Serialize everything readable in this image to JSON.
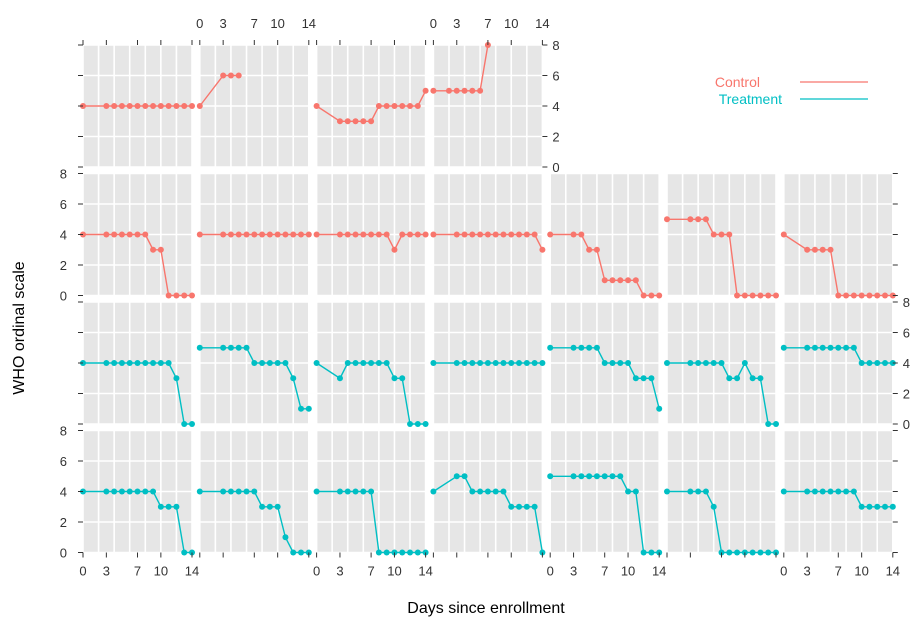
{
  "chart_data": {
    "type": "line",
    "title": "",
    "xlabel": "Days since enrollment",
    "ylabel": "WHO ordinal scale",
    "xlim": [
      0,
      14
    ],
    "ylim": [
      0,
      8
    ],
    "x_ticks": [
      0,
      3,
      7,
      10,
      14
    ],
    "y_ticks": [
      0,
      2,
      4,
      6,
      8
    ],
    "grid": true,
    "legend_position": "top-right",
    "series_styles": [
      {
        "name": "Control",
        "color": "#F8766D"
      },
      {
        "name": "Treatment",
        "color": "#00BFC4"
      }
    ],
    "panels": [
      {
        "row": 0,
        "col": 0,
        "group": "Control",
        "x": [
          0,
          3,
          4,
          5,
          6,
          7,
          8,
          9,
          10,
          11,
          12,
          13,
          14
        ],
        "y": [
          4,
          4,
          4,
          4,
          4,
          4,
          4,
          4,
          4,
          4,
          4,
          4,
          4
        ]
      },
      {
        "row": 0,
        "col": 1,
        "group": "Control",
        "x": [
          0,
          3,
          4,
          5
        ],
        "y": [
          4,
          6,
          6,
          6
        ]
      },
      {
        "row": 0,
        "col": 2,
        "group": "Control",
        "x": [
          0,
          3,
          4,
          5,
          6,
          7,
          8,
          9,
          10,
          11,
          12,
          13,
          14
        ],
        "y": [
          4,
          3,
          3,
          3,
          3,
          3,
          4,
          4,
          4,
          4,
          4,
          4,
          5
        ]
      },
      {
        "row": 0,
        "col": 3,
        "group": "Control",
        "x": [
          0,
          2,
          3,
          4,
          5,
          6,
          7
        ],
        "y": [
          5,
          5,
          5,
          5,
          5,
          5,
          8
        ]
      },
      {
        "row": 1,
        "col": 0,
        "group": "Control",
        "x": [
          0,
          3,
          4,
          5,
          6,
          7,
          8,
          9,
          10,
          11,
          12,
          13,
          14
        ],
        "y": [
          4,
          4,
          4,
          4,
          4,
          4,
          4,
          3,
          3,
          0,
          0,
          0,
          0
        ]
      },
      {
        "row": 1,
        "col": 1,
        "group": "Control",
        "x": [
          0,
          3,
          4,
          5,
          6,
          7,
          8,
          9,
          10,
          11,
          12,
          13,
          14
        ],
        "y": [
          4,
          4,
          4,
          4,
          4,
          4,
          4,
          4,
          4,
          4,
          4,
          4,
          4
        ]
      },
      {
        "row": 1,
        "col": 2,
        "group": "Control",
        "x": [
          0,
          3,
          4,
          5,
          6,
          7,
          8,
          9,
          10,
          11,
          12,
          13,
          14
        ],
        "y": [
          4,
          4,
          4,
          4,
          4,
          4,
          4,
          4,
          3,
          4,
          4,
          4,
          4
        ]
      },
      {
        "row": 1,
        "col": 3,
        "group": "Control",
        "x": [
          0,
          3,
          4,
          5,
          6,
          7,
          8,
          9,
          10,
          11,
          12,
          13,
          14
        ],
        "y": [
          4,
          4,
          4,
          4,
          4,
          4,
          4,
          4,
          4,
          4,
          4,
          4,
          3
        ]
      },
      {
        "row": 1,
        "col": 4,
        "group": "Control",
        "x": [
          0,
          3,
          4,
          5,
          6,
          7,
          8,
          9,
          10,
          11,
          12,
          13,
          14
        ],
        "y": [
          4,
          4,
          4,
          3,
          3,
          1,
          1,
          1,
          1,
          1,
          0,
          0,
          0
        ]
      },
      {
        "row": 1,
        "col": 5,
        "group": "Control",
        "x": [
          0,
          3,
          4,
          5,
          6,
          7,
          8,
          9,
          10,
          11,
          12,
          13,
          14
        ],
        "y": [
          5,
          5,
          5,
          5,
          4,
          4,
          4,
          0,
          0,
          0,
          0,
          0,
          0
        ]
      },
      {
        "row": 1,
        "col": 6,
        "group": "Control",
        "x": [
          0,
          3,
          4,
          5,
          6,
          7,
          8,
          9,
          10,
          11,
          12,
          13,
          14
        ],
        "y": [
          4,
          3,
          3,
          3,
          3,
          0,
          0,
          0,
          0,
          0,
          0,
          0,
          0
        ]
      },
      {
        "row": 2,
        "col": 0,
        "group": "Treatment",
        "x": [
          0,
          3,
          4,
          5,
          6,
          7,
          8,
          9,
          10,
          11,
          12,
          13,
          14
        ],
        "y": [
          4,
          4,
          4,
          4,
          4,
          4,
          4,
          4,
          4,
          4,
          3,
          0,
          0
        ]
      },
      {
        "row": 2,
        "col": 1,
        "group": "Treatment",
        "x": [
          0,
          3,
          4,
          5,
          6,
          7,
          8,
          9,
          10,
          11,
          12,
          13,
          14
        ],
        "y": [
          5,
          5,
          5,
          5,
          5,
          4,
          4,
          4,
          4,
          4,
          3,
          1,
          1
        ]
      },
      {
        "row": 2,
        "col": 2,
        "group": "Treatment",
        "x": [
          0,
          3,
          4,
          5,
          6,
          7,
          8,
          9,
          10,
          11,
          12,
          13,
          14
        ],
        "y": [
          4,
          3,
          4,
          4,
          4,
          4,
          4,
          4,
          3,
          3,
          0,
          0,
          0
        ]
      },
      {
        "row": 2,
        "col": 3,
        "group": "Treatment",
        "x": [
          0,
          3,
          4,
          5,
          6,
          7,
          8,
          9,
          10,
          11,
          12,
          13,
          14
        ],
        "y": [
          4,
          4,
          4,
          4,
          4,
          4,
          4,
          4,
          4,
          4,
          4,
          4,
          4
        ]
      },
      {
        "row": 2,
        "col": 4,
        "group": "Treatment",
        "x": [
          0,
          3,
          4,
          5,
          6,
          7,
          8,
          9,
          10,
          11,
          12,
          13,
          14
        ],
        "y": [
          5,
          5,
          5,
          5,
          5,
          4,
          4,
          4,
          4,
          3,
          3,
          3,
          1
        ]
      },
      {
        "row": 2,
        "col": 5,
        "group": "Treatment",
        "x": [
          0,
          3,
          4,
          5,
          6,
          7,
          8,
          9,
          10,
          11,
          12,
          13,
          14
        ],
        "y": [
          4,
          4,
          4,
          4,
          4,
          4,
          3,
          3,
          4,
          3,
          3,
          0,
          0
        ]
      },
      {
        "row": 2,
        "col": 6,
        "group": "Treatment",
        "x": [
          0,
          3,
          4,
          5,
          6,
          7,
          8,
          9,
          10,
          11,
          12,
          13,
          14
        ],
        "y": [
          5,
          5,
          5,
          5,
          5,
          5,
          5,
          5,
          4,
          4,
          4,
          4,
          4
        ]
      },
      {
        "row": 3,
        "col": 0,
        "group": "Treatment",
        "x": [
          0,
          3,
          4,
          5,
          6,
          7,
          8,
          9,
          10,
          11,
          12,
          13,
          14
        ],
        "y": [
          4,
          4,
          4,
          4,
          4,
          4,
          4,
          4,
          3,
          3,
          3,
          0,
          0
        ]
      },
      {
        "row": 3,
        "col": 1,
        "group": "Treatment",
        "x": [
          0,
          3,
          4,
          5,
          6,
          7,
          8,
          9,
          10,
          11,
          12,
          13,
          14
        ],
        "y": [
          4,
          4,
          4,
          4,
          4,
          4,
          3,
          3,
          3,
          1,
          0,
          0,
          0
        ]
      },
      {
        "row": 3,
        "col": 2,
        "group": "Treatment",
        "x": [
          0,
          3,
          4,
          5,
          6,
          7,
          8,
          9,
          10,
          11,
          12,
          13,
          14
        ],
        "y": [
          4,
          4,
          4,
          4,
          4,
          4,
          0,
          0,
          0,
          0,
          0,
          0,
          0
        ]
      },
      {
        "row": 3,
        "col": 3,
        "group": "Treatment",
        "x": [
          0,
          3,
          4,
          5,
          6,
          7,
          8,
          9,
          10,
          11,
          12,
          13,
          14
        ],
        "y": [
          4,
          5,
          5,
          4,
          4,
          4,
          4,
          4,
          3,
          3,
          3,
          3,
          0
        ]
      },
      {
        "row": 3,
        "col": 4,
        "group": "Treatment",
        "x": [
          0,
          3,
          4,
          5,
          6,
          7,
          8,
          9,
          10,
          11,
          12,
          13,
          14
        ],
        "y": [
          5,
          5,
          5,
          5,
          5,
          5,
          5,
          5,
          4,
          4,
          0,
          0,
          0
        ]
      },
      {
        "row": 3,
        "col": 5,
        "group": "Treatment",
        "x": [
          0,
          3,
          4,
          5,
          6,
          7,
          8,
          9,
          10,
          11,
          12,
          13,
          14
        ],
        "y": [
          4,
          4,
          4,
          4,
          3,
          0,
          0,
          0,
          0,
          0,
          0,
          0,
          0
        ]
      },
      {
        "row": 3,
        "col": 6,
        "group": "Treatment",
        "x": [
          0,
          3,
          4,
          5,
          6,
          7,
          8,
          9,
          10,
          11,
          12,
          13,
          14
        ],
        "y": [
          4,
          4,
          4,
          4,
          4,
          4,
          4,
          4,
          3,
          3,
          3,
          3,
          3
        ]
      }
    ]
  }
}
